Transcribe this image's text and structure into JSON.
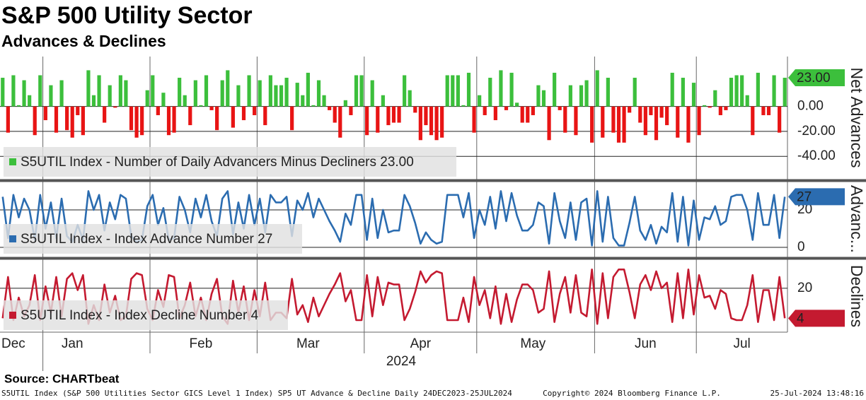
{
  "title": "S&P 500 Utility Sector",
  "subtitle": "Advances & Declines",
  "source": "Source: CHARTbeat",
  "footer": {
    "left": "S5UTIL Index (S&P 500 Utilities Sector GICS Level 1 Index) SP5 UT Advance & Decline  Daily 24DEC2023-25JUL2024",
    "center": "Copyright© 2024 Bloomberg Finance L.P.",
    "right": "25-Jul-2024 13:48:16"
  },
  "chart_data": [
    {
      "type": "bar",
      "axis_title": "Net Advances",
      "ylim": [
        -58,
        40
      ],
      "yticks": [
        {
          "value": 0,
          "label": "0.00"
        },
        {
          "value": -20,
          "label": "-20.00"
        },
        {
          "value": -40,
          "label": "-40.00"
        }
      ],
      "grid": true,
      "last_value_label": "23.00",
      "series": [
        {
          "name": "S5UTIL Index - Number of Daily Advancers Minus Decliners 23.00",
          "color": "#3cbf3c",
          "negative_color": "#e81414",
          "values": [
            23,
            -21,
            25,
            1,
            21,
            9,
            -23,
            25,
            -11,
            17,
            -21,
            21,
            -19,
            -25,
            -7,
            -23,
            29,
            9,
            25,
            -13,
            17,
            -1,
            25,
            21,
            -19,
            -25,
            -23,
            13,
            25,
            -7,
            11,
            -23,
            -21,
            23,
            9,
            -15,
            21,
            1,
            25,
            -3,
            -19,
            21,
            29,
            -17,
            17,
            -11,
            25,
            -7,
            21,
            -15,
            25,
            17,
            17,
            23,
            -19,
            19,
            9,
            27,
            1,
            21,
            9,
            -3,
            -13,
            -25,
            5,
            -7,
            25,
            25,
            -23,
            21,
            -21,
            9,
            -15,
            -13,
            -13,
            25,
            13,
            -5,
            -27,
            -15,
            -23,
            -27,
            -25,
            25,
            25,
            25,
            1,
            27,
            -21,
            9,
            -7,
            23,
            -11,
            29,
            -3,
            27,
            3,
            -13,
            -13,
            -7,
            17,
            13,
            -27,
            27,
            -3,
            -21,
            17,
            -23,
            17,
            21,
            -29,
            29,
            -25,
            23,
            -21,
            -29,
            -29,
            -5,
            23,
            -13,
            -23,
            -7,
            -27,
            -9,
            -15,
            27,
            -25,
            23,
            -29,
            19,
            -23,
            1,
            -1,
            13,
            -7,
            -3,
            23,
            25,
            25,
            9,
            -23,
            27,
            -7,
            -7,
            25,
            -21,
            23
          ]
        }
      ]
    },
    {
      "type": "line",
      "axis_title": "Advanc...",
      "ylim": [
        -4.5,
        34.7
      ],
      "yticks": [
        20,
        0
      ],
      "grid": true,
      "last_value_label": "27",
      "series": [
        {
          "name": "S5UTIL Index - Index Advance Number 27",
          "color": "#2b6cb0",
          "values": [
            27,
            5,
            28,
            16,
            26,
            20,
            4,
            28,
            10,
            24,
            5,
            26,
            6,
            3,
            12,
            4,
            30,
            20,
            28,
            9,
            24,
            15,
            28,
            26,
            6,
            3,
            4,
            22,
            28,
            12,
            21,
            4,
            5,
            27,
            20,
            8,
            26,
            16,
            28,
            14,
            6,
            26,
            30,
            7,
            24,
            10,
            28,
            12,
            26,
            8,
            28,
            24,
            24,
            27,
            6,
            25,
            20,
            29,
            16,
            26,
            20,
            14,
            9,
            3,
            18,
            12,
            28,
            28,
            4,
            26,
            5,
            20,
            8,
            9,
            9,
            28,
            22,
            13,
            2,
            8,
            4,
            2,
            3,
            28,
            28,
            28,
            16,
            29,
            5,
            20,
            12,
            27,
            10,
            30,
            14,
            29,
            17,
            9,
            9,
            12,
            24,
            22,
            2,
            29,
            14,
            5,
            24,
            4,
            24,
            26,
            1,
            30,
            3,
            27,
            5,
            1,
            1,
            13,
            27,
            9,
            4,
            12,
            2,
            11,
            8,
            29,
            3,
            27,
            1,
            25,
            4,
            16,
            15,
            22,
            12,
            14,
            27,
            28,
            28,
            20,
            4,
            29,
            12,
            12,
            28,
            5,
            27
          ]
        }
      ]
    },
    {
      "type": "line",
      "axis_title": "Declines",
      "ylim": [
        -3.4,
        35
      ],
      "yticks": [
        20
      ],
      "grid": true,
      "last_value_label": "4",
      "year_label": "2024",
      "categories": [
        null,
        null,
        "Dec",
        null,
        null,
        null,
        null,
        null,
        null,
        null,
        null,
        null,
        null,
        "Jan",
        null,
        null,
        null,
        null,
        null,
        null,
        null,
        null,
        null,
        null,
        null,
        null,
        null,
        null,
        null,
        null,
        null,
        null,
        null,
        null,
        null,
        null,
        null,
        "Feb",
        null,
        null,
        null,
        null,
        null,
        null,
        null,
        null,
        null,
        null,
        null,
        null,
        null,
        null,
        null,
        null,
        null,
        null,
        null,
        "Mar",
        null,
        null,
        null,
        null,
        null,
        null,
        null,
        null,
        null,
        null,
        null,
        null,
        null,
        null,
        null,
        null,
        null,
        null,
        null,
        null,
        "Apr",
        null,
        null,
        null,
        null,
        null,
        null,
        null,
        null,
        null,
        null,
        null,
        null,
        null,
        null,
        null,
        null,
        null,
        null,
        null,
        null,
        "May",
        null,
        null,
        null,
        null,
        null,
        null,
        null,
        null,
        null,
        null,
        null,
        null,
        null,
        null,
        null,
        null,
        null,
        null,
        null,
        null,
        "Jun",
        null,
        null,
        null,
        null,
        null,
        null,
        null,
        null,
        null,
        null,
        null,
        null,
        null,
        null,
        null,
        null,
        null,
        "Jul",
        null,
        null,
        null,
        null,
        null,
        null,
        null,
        null
      ],
      "series": [
        {
          "name": "S5UTIL Index - Index Decline Number 4",
          "color": "#c41a30",
          "values": [
            4,
            26,
            3,
            15,
            5,
            11,
            27,
            3,
            21,
            7,
            26,
            5,
            25,
            28,
            19,
            27,
            1,
            11,
            3,
            22,
            7,
            16,
            3,
            5,
            25,
            28,
            27,
            9,
            3,
            19,
            10,
            27,
            26,
            4,
            11,
            23,
            5,
            15,
            3,
            17,
            25,
            5,
            1,
            24,
            7,
            21,
            3,
            19,
            5,
            23,
            3,
            7,
            7,
            4,
            25,
            6,
            11,
            2,
            15,
            5,
            11,
            17,
            22,
            28,
            13,
            19,
            3,
            3,
            27,
            5,
            26,
            11,
            23,
            22,
            22,
            3,
            9,
            18,
            29,
            23,
            27,
            29,
            28,
            3,
            3,
            3,
            15,
            2,
            26,
            11,
            19,
            4,
            21,
            1,
            17,
            2,
            14,
            22,
            22,
            19,
            7,
            9,
            29,
            2,
            17,
            26,
            7,
            27,
            7,
            5,
            30,
            1,
            28,
            4,
            26,
            30,
            30,
            18,
            4,
            22,
            27,
            19,
            29,
            20,
            23,
            2,
            28,
            4,
            30,
            6,
            27,
            15,
            16,
            9,
            19,
            17,
            4,
            3,
            3,
            11,
            27,
            2,
            19,
            19,
            3,
            26,
            4
          ]
        }
      ]
    }
  ]
}
